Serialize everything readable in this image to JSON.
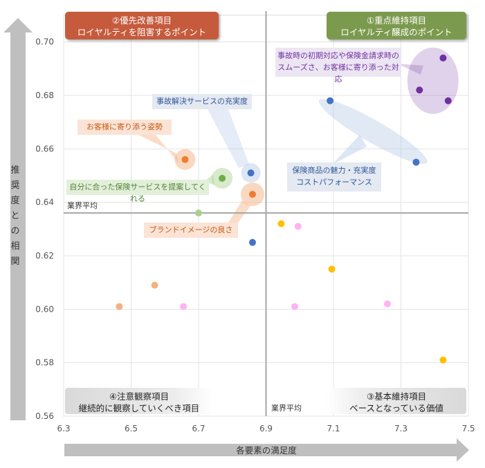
{
  "chart_data": {
    "type": "scatter",
    "xlabel": "各要素の満足度",
    "ylabel": "推奨度との相関",
    "xlim": [
      6.3,
      7.5
    ],
    "ylim": [
      0.56,
      0.71
    ],
    "x_ticks": [
      "6.3",
      "6.5",
      "6.7",
      "6.9",
      "7.1",
      "7.3",
      "7.5"
    ],
    "y_ticks": [
      "0.56",
      "0.58",
      "0.60",
      "0.62",
      "0.64",
      "0.66",
      "0.68",
      "0.70"
    ],
    "grid": true,
    "averages": {
      "x": 6.9,
      "y": 0.636,
      "label_x": "業界平均",
      "label_y": "業界平均"
    },
    "points": [
      {
        "x": 7.425,
        "y": 0.694,
        "color": "#7030A0"
      },
      {
        "x": 7.355,
        "y": 0.682,
        "color": "#7030A0"
      },
      {
        "x": 7.44,
        "y": 0.678,
        "color": "#7030A0"
      },
      {
        "x": 7.09,
        "y": 0.678,
        "color": "#4472C4"
      },
      {
        "x": 7.345,
        "y": 0.655,
        "color": "#4472C4"
      },
      {
        "x": 6.855,
        "y": 0.651,
        "color": "#4472C4"
      },
      {
        "x": 6.86,
        "y": 0.625,
        "color": "#4472C4"
      },
      {
        "x": 6.66,
        "y": 0.656,
        "color": "#ED7D31"
      },
      {
        "x": 6.86,
        "y": 0.643,
        "color": "#ED7D31"
      },
      {
        "x": 6.57,
        "y": 0.609,
        "color": "#F4B183"
      },
      {
        "x": 6.465,
        "y": 0.601,
        "color": "#F4B183"
      },
      {
        "x": 6.77,
        "y": 0.649,
        "color": "#70AD47"
      },
      {
        "x": 6.7,
        "y": 0.636,
        "color": "#A9D18E"
      },
      {
        "x": 6.655,
        "y": 0.601,
        "color": "#FFB3F0"
      },
      {
        "x": 6.945,
        "y": 0.632,
        "color": "#FFC000"
      },
      {
        "x": 6.995,
        "y": 0.631,
        "color": "#FFB3F0"
      },
      {
        "x": 7.095,
        "y": 0.615,
        "color": "#FFC000"
      },
      {
        "x": 6.985,
        "y": 0.601,
        "color": "#FFB3F0"
      },
      {
        "x": 7.26,
        "y": 0.602,
        "color": "#FFB3F0"
      },
      {
        "x": 7.425,
        "y": 0.581,
        "color": "#FFC000"
      }
    ],
    "quadrants": {
      "q1": {
        "line1": "①重点維持項目",
        "line2": "ロイヤルティ醸成のポイント"
      },
      "q2": {
        "line1": "②優先改善項目",
        "line2": "ロイヤルティを阻害するポイント"
      },
      "q3": {
        "line1": "③基本維持項目",
        "line2": "ベースとなっている価値"
      },
      "q4": {
        "line1": "④注意観察項目",
        "line2": "継続的に観察していくべき項目"
      }
    },
    "annotations": {
      "accident_response": {
        "line1": "事故時の初期対応や保険金請求時の",
        "line2": "スムーズさ、お客様に寄り添った対応"
      },
      "accident_service": "事故解決サービスの充実度",
      "close_to_customer": "お客様に寄り添う姿勢",
      "proposal": "自分に合った保険サービスを提案してくれる",
      "brand": "ブランドイメージの良さ",
      "product": {
        "line1": "保険商品の魅力・充実度",
        "line2": "コストパフォーマンス"
      }
    }
  }
}
